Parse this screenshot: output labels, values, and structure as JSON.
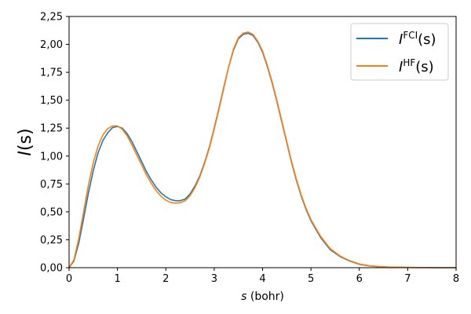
{
  "chart_data": {
    "type": "line",
    "xlabel_var": "s",
    "xlabel_unit": " (bohr)",
    "ylabel_main": "I",
    "ylabel_args": "(s)",
    "xlim": [
      0,
      8
    ],
    "ylim": [
      0,
      2.25
    ],
    "xticks": [
      0,
      1,
      2,
      3,
      4,
      5,
      6,
      7,
      8
    ],
    "xtick_labels": [
      "0",
      "1",
      "2",
      "3",
      "4",
      "5",
      "6",
      "7",
      "8"
    ],
    "yticks": [
      0,
      0.25,
      0.5,
      0.75,
      1.0,
      1.25,
      1.5,
      1.75,
      2.0,
      2.25
    ],
    "ytick_labels": [
      "0,00",
      "0,25",
      "0,50",
      "0,75",
      "1,00",
      "1,25",
      "1,50",
      "1,75",
      "2,00",
      "2,25"
    ],
    "grid": false,
    "legend_position": "top-right",
    "series": [
      {
        "name_base": "I",
        "name_sup": "FCI",
        "name_args": "(s)",
        "color": "#1f77b4",
        "x": [
          0,
          0.1,
          0.2,
          0.3,
          0.4,
          0.5,
          0.6,
          0.7,
          0.8,
          0.9,
          1.0,
          1.1,
          1.2,
          1.3,
          1.4,
          1.5,
          1.6,
          1.7,
          1.8,
          1.9,
          2.0,
          2.1,
          2.2,
          2.3,
          2.4,
          2.5,
          2.6,
          2.7,
          2.8,
          2.9,
          3.0,
          3.1,
          3.2,
          3.3,
          3.4,
          3.5,
          3.6,
          3.7,
          3.8,
          3.9,
          4.0,
          4.1,
          4.2,
          4.3,
          4.4,
          4.5,
          4.6,
          4.7,
          4.8,
          4.9,
          5.0,
          5.2,
          5.4,
          5.6,
          5.8,
          6.0,
          6.2,
          6.4,
          6.6,
          6.8,
          7.0,
          7.2,
          7.4,
          7.6,
          7.8,
          8.0
        ],
        "y": [
          0,
          0.06,
          0.22,
          0.44,
          0.67,
          0.87,
          1.03,
          1.14,
          1.21,
          1.255,
          1.265,
          1.25,
          1.2,
          1.13,
          1.04,
          0.95,
          0.86,
          0.785,
          0.72,
          0.67,
          0.635,
          0.61,
          0.6,
          0.6,
          0.615,
          0.66,
          0.73,
          0.82,
          0.94,
          1.08,
          1.25,
          1.43,
          1.62,
          1.8,
          1.95,
          2.05,
          2.09,
          2.1,
          2.08,
          2.02,
          1.93,
          1.8,
          1.65,
          1.48,
          1.3,
          1.12,
          0.94,
          0.78,
          0.64,
          0.52,
          0.42,
          0.27,
          0.16,
          0.1,
          0.06,
          0.03,
          0.016,
          0.009,
          0.005,
          0.003,
          0.002,
          0.001,
          0.001,
          0.0,
          0.0,
          0.0
        ]
      },
      {
        "name_base": "I",
        "name_sup": "HF",
        "name_args": "(s)",
        "color": "#ff7f0e",
        "x": [
          0,
          0.1,
          0.2,
          0.3,
          0.4,
          0.5,
          0.6,
          0.7,
          0.8,
          0.9,
          1.0,
          1.1,
          1.2,
          1.3,
          1.4,
          1.5,
          1.6,
          1.7,
          1.8,
          1.9,
          2.0,
          2.1,
          2.2,
          2.3,
          2.4,
          2.5,
          2.6,
          2.7,
          2.8,
          2.9,
          3.0,
          3.1,
          3.2,
          3.3,
          3.4,
          3.5,
          3.6,
          3.7,
          3.8,
          3.9,
          4.0,
          4.1,
          4.2,
          4.3,
          4.4,
          4.5,
          4.6,
          4.7,
          4.8,
          4.9,
          5.0,
          5.2,
          5.4,
          5.6,
          5.8,
          6.0,
          6.2,
          6.4,
          6.6,
          6.8,
          7.0,
          7.2,
          7.4,
          7.6,
          7.8,
          8.0
        ],
        "y": [
          0,
          0.07,
          0.26,
          0.5,
          0.74,
          0.94,
          1.09,
          1.19,
          1.245,
          1.27,
          1.27,
          1.24,
          1.18,
          1.1,
          1.01,
          0.92,
          0.83,
          0.755,
          0.69,
          0.64,
          0.605,
          0.585,
          0.578,
          0.582,
          0.6,
          0.645,
          0.715,
          0.81,
          0.93,
          1.07,
          1.24,
          1.42,
          1.61,
          1.8,
          1.96,
          2.06,
          2.1,
          2.11,
          2.09,
          2.03,
          1.94,
          1.81,
          1.66,
          1.49,
          1.31,
          1.13,
          0.95,
          0.79,
          0.65,
          0.53,
          0.43,
          0.28,
          0.17,
          0.105,
          0.063,
          0.033,
          0.018,
          0.01,
          0.006,
          0.004,
          0.002,
          0.001,
          0.001,
          0.0,
          0.0,
          0.0
        ]
      }
    ]
  }
}
